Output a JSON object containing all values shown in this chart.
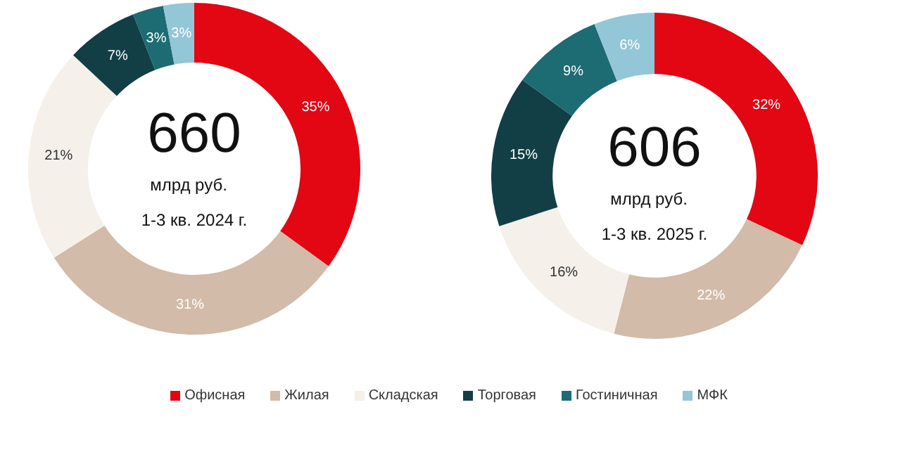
{
  "chart_data": [
    {
      "type": "donut",
      "title": "660",
      "subtitle": "млрд руб.",
      "annotations": [
        "1-3 кв. 2024 г."
      ],
      "categories": [
        "Офисная",
        "Жилая",
        "Складская",
        "Торговая",
        "Гостиничная",
        "МФК"
      ],
      "values": [
        35,
        31,
        21,
        7,
        3,
        3
      ],
      "value_labels": [
        "35%",
        "31%",
        "21%",
        "7%",
        "3%",
        "3%"
      ],
      "colors": [
        "#e30613",
        "#d2bba8",
        "#f5f0ea",
        "#123f45",
        "#1d6b73",
        "#93c6d6"
      ],
      "legend": "bottom"
    },
    {
      "type": "donut",
      "title": "606",
      "subtitle": "млрд руб.",
      "annotations": [
        "1-3 кв. 2025 г."
      ],
      "categories": [
        null,
        null,
        null,
        null,
        null,
        null
      ],
      "values": [
        32,
        22,
        16,
        15,
        9,
        6
      ],
      "value_labels": [
        "32%",
        "22%",
        "16%",
        "15%",
        "9%",
        "6%"
      ],
      "colors": [
        "#e30613",
        "#d2bba8",
        "#f5f0ea",
        "#123f45",
        "#1d6b73",
        "#93c6d6"
      ]
    }
  ]
}
